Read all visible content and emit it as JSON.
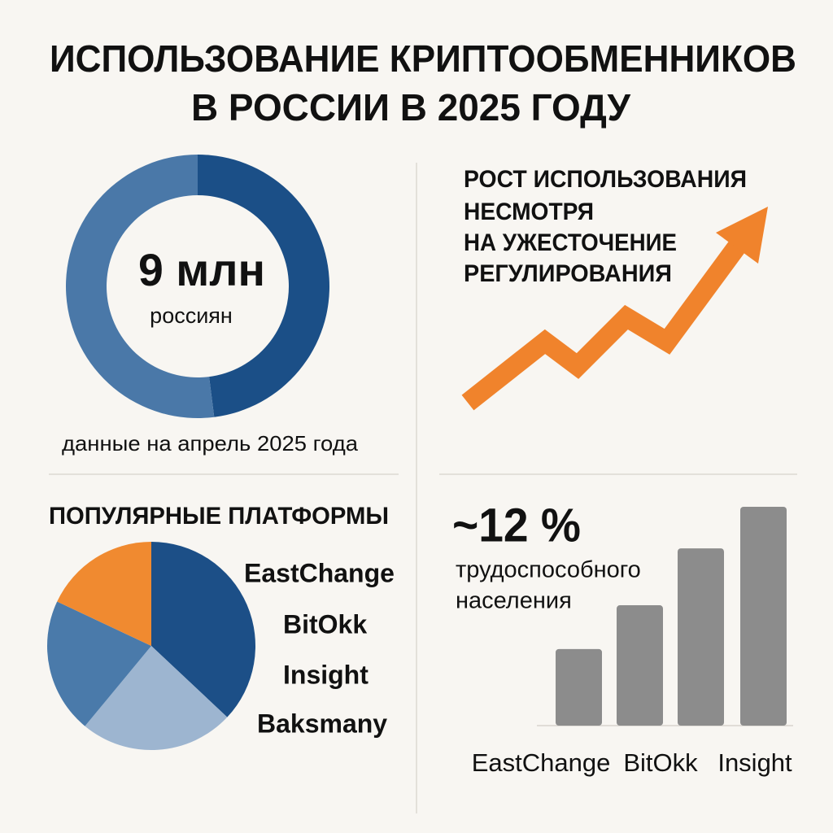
{
  "title": [
    "ИСПОЛЬЗОВАНИЕ КРИПТООБМЕННИКОВ",
    "В РОССИИ В 2025 ГОДУ"
  ],
  "trend": {
    "title": [
      "РОСТ ИСПОЛЬЗОВАНИЯ",
      "НЕСМОТРЯ",
      "НА УЖЕСТОЧЕНИЕ",
      "РЕГУЛИРОВАНИЯ"
    ],
    "color": "#f0832c"
  },
  "chart_data": [
    {
      "type": "donut",
      "values": [
        48,
        52
      ],
      "colors": [
        "#1b4f87",
        "#4a78a8"
      ],
      "center_value": "9 млн",
      "center_label": "россиян",
      "note": "данные на апрель 2025 года"
    },
    {
      "type": "pie",
      "title": "ПОПУЛЯРНЫЕ ПЛАТФОРМЫ",
      "categories": [
        "EastChange",
        "BitOkk",
        "Insight",
        "Baksmany"
      ],
      "values": [
        37,
        24,
        21,
        18
      ],
      "colors": [
        "#1c4f87",
        "#9db5d0",
        "#4a7aaa",
        "#f08a30"
      ]
    },
    {
      "type": "bar",
      "headline": "~12 %",
      "subtitle": [
        "трудоспособного",
        "населения"
      ],
      "categories": [
        "EastChange",
        "BitOkk",
        "Insight",
        null
      ],
      "values": [
        35,
        55,
        81,
        100
      ],
      "color": "#8c8c8c"
    }
  ]
}
